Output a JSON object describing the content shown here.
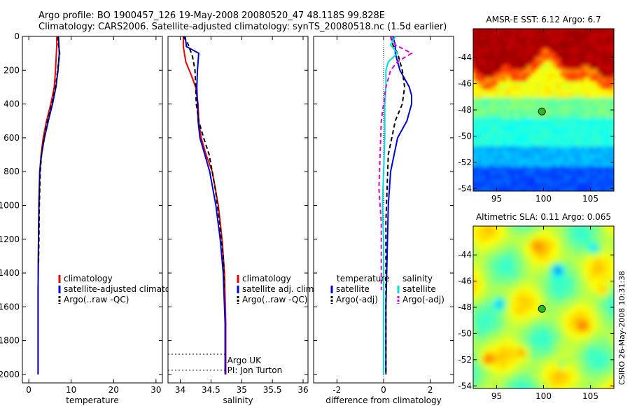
{
  "header": {
    "line1": "Argo profile: BO 1900457_126 19-May-2008 20080520_47 48.118S 99.828E",
    "line2": "Climatology: CARS2006. Satellite-adjusted climatology: synTS_20080518.nc (1.5d earlier)"
  },
  "side_note": "CSIRO 26-May-2008 10:31:38",
  "colors": {
    "climatology": "#ee0000",
    "satellite": "#0000dd",
    "argo": "#000000",
    "sal_satellite": "#00dddd",
    "sal_argo": "#dd00dd"
  },
  "chart_data": [
    {
      "type": "line",
      "id": "temperature",
      "xlabel": "temperature",
      "ylabel": "",
      "xlim": [
        -1.5,
        31.5
      ],
      "ylim": [
        2050,
        0
      ],
      "xticks": [
        0,
        10,
        20,
        30
      ],
      "yticks": [
        0,
        200,
        400,
        600,
        800,
        1000,
        1200,
        1400,
        1600,
        1800,
        2000
      ],
      "legend": [
        "climatology",
        "satellite-adjusted climatolog",
        "Argo(..raw -QC)"
      ],
      "legend_position": "lower-right",
      "series": [
        {
          "name": "climatology",
          "style": "solid",
          "color": "#ee0000",
          "x": [
            6.6,
            6.6,
            6.5,
            6.3,
            6.0,
            5.2,
            4.2,
            3.4,
            2.9,
            2.6,
            2.4,
            2.3,
            2.2,
            2.2
          ],
          "y": [
            0,
            50,
            100,
            200,
            300,
            400,
            500,
            600,
            700,
            800,
            1000,
            1200,
            1500,
            2000
          ]
        },
        {
          "name": "satellite-adjusted climatolog",
          "style": "solid",
          "color": "#0000dd",
          "x": [
            7.0,
            7.1,
            7.2,
            6.9,
            6.4,
            5.6,
            4.6,
            3.7,
            3.0,
            2.6,
            2.4,
            2.3,
            2.2,
            2.2
          ],
          "y": [
            0,
            50,
            100,
            200,
            300,
            400,
            500,
            600,
            700,
            800,
            1000,
            1200,
            1500,
            2000
          ]
        },
        {
          "name": "Argo(..raw -QC)",
          "style": "dashed",
          "color": "#000000",
          "x": [
            6.9,
            7.0,
            7.3,
            6.8,
            6.3,
            5.4,
            4.4,
            3.6,
            3.0,
            2.7,
            2.5,
            2.4,
            2.3
          ],
          "y": [
            0,
            50,
            100,
            200,
            300,
            400,
            500,
            600,
            700,
            800,
            1000,
            1200,
            1350
          ]
        }
      ]
    },
    {
      "type": "line",
      "id": "salinity",
      "xlabel": "salinity",
      "ylabel": "",
      "xlim": [
        33.8,
        36.08
      ],
      "ylim": [
        2050,
        0
      ],
      "xticks": [
        34,
        34.5,
        35,
        35.5,
        36
      ],
      "legend": [
        "climatology",
        "satellite adj. clim.",
        "Argo(..raw -QC)"
      ],
      "legend_position": "lower-right",
      "annotations": [
        "Argo UK",
        "PI: Jon Turton"
      ],
      "series": [
        {
          "name": "climatology",
          "style": "solid",
          "color": "#ee0000",
          "x": [
            34.05,
            34.05,
            34.09,
            34.18,
            34.25,
            34.29,
            34.3,
            34.34,
            34.42,
            34.52,
            34.62,
            34.68,
            34.72,
            34.74,
            34.74
          ],
          "y": [
            0,
            60,
            150,
            230,
            300,
            400,
            500,
            600,
            700,
            800,
            1000,
            1200,
            1400,
            1700,
            2000
          ]
        },
        {
          "name": "satellite adj. clim.",
          "style": "solid",
          "color": "#0000dd",
          "x": [
            34.08,
            34.1,
            34.3,
            34.28,
            34.27,
            34.28,
            34.29,
            34.32,
            34.4,
            34.48,
            34.58,
            34.65,
            34.7,
            34.73,
            34.73
          ],
          "y": [
            0,
            60,
            100,
            200,
            300,
            400,
            500,
            600,
            700,
            800,
            1000,
            1200,
            1400,
            1700,
            2000
          ]
        },
        {
          "name": "Argo(..raw -QC)",
          "style": "dashed",
          "color": "#000000",
          "x": [
            34.05,
            34.12,
            34.2,
            34.24,
            34.25,
            34.26,
            34.3,
            34.38,
            34.47,
            34.57,
            34.64,
            34.7,
            34.72
          ],
          "y": [
            0,
            40,
            120,
            200,
            300,
            400,
            500,
            600,
            700,
            900,
            1100,
            1300,
            1500
          ]
        }
      ]
    },
    {
      "type": "line",
      "id": "difference",
      "xlabel": "difference from climatology",
      "ylabel": "",
      "xlim": [
        -3,
        3
      ],
      "ylim": [
        2050,
        0
      ],
      "xticks": [
        -2,
        0,
        2
      ],
      "legend_groups": [
        {
          "title": "temperature",
          "items": [
            "satellite",
            "Argo(-adj)"
          ]
        },
        {
          "title": "salinity",
          "items": [
            "satellite",
            "Argo(-adj)"
          ]
        }
      ],
      "series": [
        {
          "name": "temperature satellite",
          "style": "solid",
          "color": "#0000dd",
          "x": [
            0.4,
            0.5,
            0.5,
            0.6,
            0.7,
            0.9,
            1.1,
            1.2,
            1.2,
            1.0,
            0.6,
            0.3,
            0.2,
            0.15,
            0.1,
            0.1
          ],
          "y": [
            0,
            50,
            100,
            150,
            200,
            250,
            300,
            350,
            400,
            500,
            600,
            800,
            1000,
            1300,
            1600,
            2000
          ]
        },
        {
          "name": "temperature Argo(-adj)",
          "style": "dashed",
          "color": "#000000",
          "x": [
            0.3,
            0.4,
            0.6,
            0.8,
            0.9,
            0.8,
            0.5,
            0.2,
            0.15,
            0.1,
            0.1,
            0.1,
            0.1
          ],
          "y": [
            0,
            50,
            100,
            200,
            300,
            400,
            500,
            700,
            900,
            1100,
            1300,
            1600,
            2000
          ]
        },
        {
          "name": "salinity satellite",
          "style": "solid",
          "color": "#00dddd",
          "x": [
            0.5,
            0.3,
            0.6,
            0.2,
            0.1,
            0.1,
            0.05,
            0.05,
            0.0,
            -0.05,
            0.0,
            0.0,
            0.0
          ],
          "y": [
            0,
            50,
            100,
            150,
            200,
            300,
            400,
            600,
            800,
            1000,
            1200,
            1600,
            2000
          ]
        },
        {
          "name": "salinity Argo(-adj)",
          "style": "dashed",
          "color": "#dd00dd",
          "x": [
            0.3,
            0.5,
            1.2,
            0.6,
            0.3,
            0.1,
            0.0,
            -0.1,
            -0.15,
            -0.2,
            -0.1,
            -0.1,
            -0.1
          ],
          "y": [
            0,
            50,
            100,
            150,
            200,
            300,
            400,
            500,
            700,
            900,
            1100,
            1300,
            1500
          ]
        }
      ]
    },
    {
      "type": "heatmap",
      "id": "sst_map",
      "title": "AMSR-E SST: 6.12 Argo: 6.7",
      "xlim": [
        92.5,
        107.5
      ],
      "ylim": [
        -54.2,
        -41.8
      ],
      "xticks": [
        95,
        100,
        105
      ],
      "yticks": [
        -44,
        -46,
        -48,
        -50,
        -52,
        -54
      ],
      "argo_position": {
        "lon": 99.828,
        "lat": -48.118
      }
    },
    {
      "type": "heatmap",
      "id": "sla_map",
      "title": "Altimetric SLA: 0.11 Argo: 0.065",
      "xlim": [
        92.5,
        107.5
      ],
      "ylim": [
        -54.2,
        -41.8
      ],
      "xticks": [
        95,
        100,
        105
      ],
      "yticks": [
        -44,
        -46,
        -48,
        -50,
        -52,
        -54
      ],
      "argo_position": {
        "lon": 99.828,
        "lat": -48.118
      }
    }
  ]
}
